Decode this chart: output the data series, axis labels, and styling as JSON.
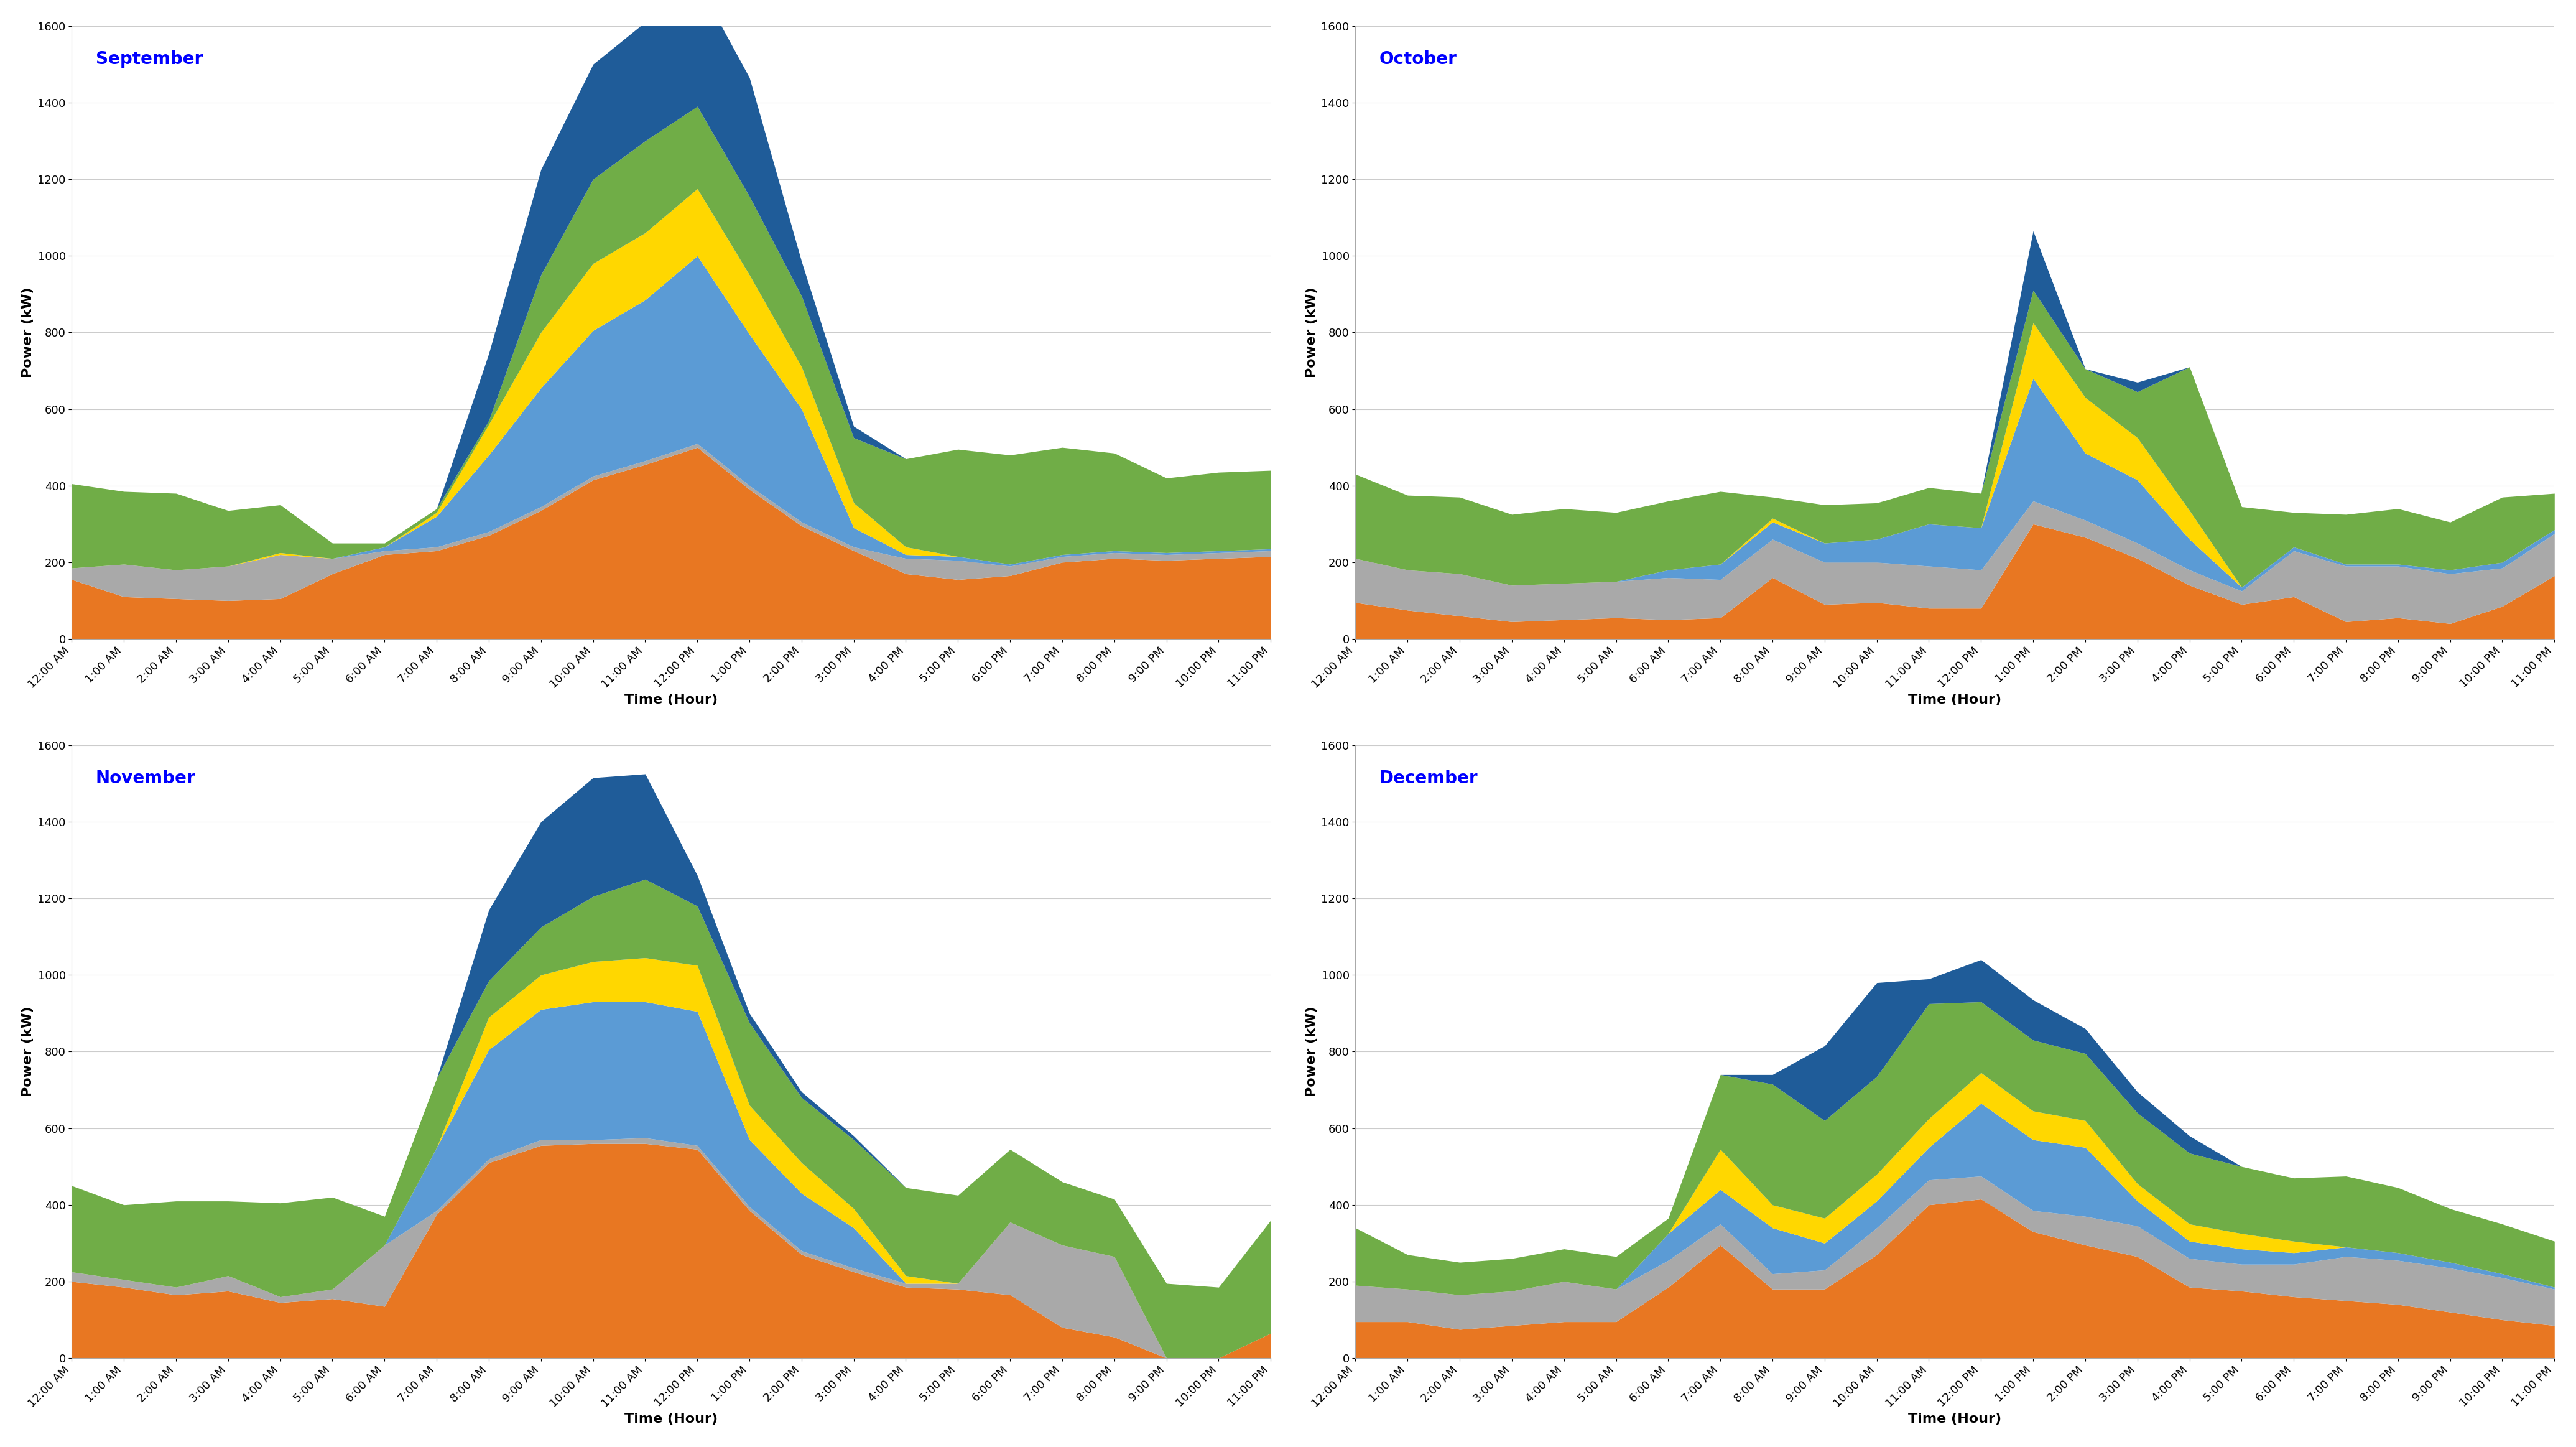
{
  "time_labels": [
    "12:00 AM",
    "1:00 AM",
    "2:00 AM",
    "3:00 AM",
    "4:00 AM",
    "5:00 AM",
    "6:00 AM",
    "7:00 AM",
    "8:00 AM",
    "9:00 AM",
    "10:00 AM",
    "11:00 AM",
    "12:00 PM",
    "1:00 PM",
    "2:00 PM",
    "3:00 PM",
    "4:00 PM",
    "5:00 PM",
    "6:00 PM",
    "7:00 PM",
    "8:00 PM",
    "9:00 PM",
    "10:00 PM",
    "11:00 PM"
  ],
  "colors": {
    "orange": "#E87722",
    "gray": "#A9A9A9",
    "light_blue": "#5B9BD5",
    "yellow": "#FFD700",
    "green": "#70AD47",
    "dark_blue": "#1F5C99",
    "title_color": "#0000FF"
  },
  "september": {
    "title": "September",
    "orange": [
      155,
      110,
      105,
      100,
      105,
      170,
      220,
      230,
      270,
      335,
      415,
      455,
      500,
      390,
      295,
      230,
      170,
      155,
      165,
      200,
      210,
      205,
      210,
      215
    ],
    "gray": [
      30,
      85,
      75,
      90,
      115,
      40,
      10,
      10,
      10,
      10,
      10,
      10,
      10,
      10,
      10,
      10,
      40,
      50,
      25,
      15,
      15,
      15,
      15,
      15
    ],
    "light_blue": [
      0,
      0,
      0,
      0,
      0,
      0,
      10,
      80,
      200,
      310,
      380,
      420,
      490,
      395,
      295,
      50,
      10,
      10,
      5,
      5,
      5,
      5,
      5,
      5
    ],
    "yellow": [
      0,
      0,
      0,
      0,
      5,
      0,
      0,
      10,
      80,
      145,
      175,
      175,
      175,
      155,
      110,
      65,
      20,
      0,
      0,
      0,
      0,
      0,
      0,
      0
    ],
    "green": [
      220,
      190,
      200,
      145,
      125,
      40,
      10,
      10,
      10,
      150,
      220,
      240,
      215,
      205,
      185,
      170,
      230,
      280,
      285,
      280,
      255,
      195,
      205,
      205
    ],
    "dark_blue": [
      0,
      0,
      0,
      0,
      0,
      0,
      0,
      0,
      175,
      275,
      300,
      310,
      325,
      310,
      90,
      30,
      0,
      0,
      0,
      0,
      0,
      0,
      0,
      0
    ]
  },
  "october": {
    "title": "October",
    "orange": [
      95,
      75,
      60,
      45,
      50,
      55,
      50,
      55,
      160,
      90,
      95,
      80,
      80,
      300,
      265,
      210,
      140,
      90,
      110,
      45,
      55,
      40,
      85,
      165
    ],
    "gray": [
      115,
      105,
      110,
      95,
      95,
      95,
      110,
      100,
      100,
      110,
      105,
      110,
      100,
      60,
      45,
      40,
      40,
      35,
      120,
      145,
      135,
      130,
      100,
      110
    ],
    "light_blue": [
      0,
      0,
      0,
      0,
      0,
      0,
      20,
      40,
      45,
      50,
      60,
      110,
      110,
      320,
      175,
      165,
      80,
      10,
      10,
      5,
      5,
      10,
      15,
      10
    ],
    "yellow": [
      0,
      0,
      0,
      0,
      0,
      0,
      0,
      0,
      10,
      0,
      0,
      0,
      0,
      145,
      145,
      110,
      75,
      0,
      0,
      0,
      0,
      0,
      0,
      0
    ],
    "green": [
      220,
      195,
      200,
      185,
      195,
      180,
      180,
      190,
      55,
      100,
      95,
      95,
      90,
      85,
      75,
      120,
      375,
      210,
      90,
      130,
      145,
      125,
      170,
      95
    ],
    "dark_blue": [
      0,
      0,
      0,
      0,
      0,
      0,
      0,
      0,
      0,
      0,
      0,
      0,
      0,
      155,
      0,
      25,
      0,
      0,
      0,
      0,
      0,
      0,
      0,
      0
    ]
  },
  "november": {
    "title": "November",
    "orange": [
      200,
      185,
      165,
      175,
      145,
      155,
      135,
      375,
      510,
      555,
      560,
      560,
      545,
      385,
      270,
      225,
      185,
      180,
      165,
      80,
      55,
      0,
      0,
      65
    ],
    "gray": [
      25,
      20,
      20,
      40,
      15,
      25,
      160,
      10,
      10,
      15,
      10,
      15,
      10,
      10,
      10,
      10,
      10,
      15,
      190,
      215,
      210,
      0,
      0,
      0
    ],
    "light_blue": [
      0,
      0,
      0,
      0,
      0,
      0,
      0,
      165,
      285,
      340,
      360,
      355,
      350,
      175,
      150,
      105,
      0,
      0,
      0,
      0,
      0,
      0,
      0,
      0
    ],
    "yellow": [
      0,
      0,
      0,
      0,
      0,
      0,
      0,
      0,
      85,
      90,
      105,
      115,
      120,
      90,
      80,
      50,
      20,
      0,
      0,
      0,
      0,
      0,
      0,
      0
    ],
    "green": [
      225,
      195,
      225,
      195,
      245,
      240,
      75,
      180,
      95,
      125,
      170,
      205,
      155,
      215,
      170,
      180,
      230,
      230,
      190,
      165,
      150,
      195,
      185,
      295
    ],
    "dark_blue": [
      0,
      0,
      0,
      0,
      0,
      0,
      0,
      0,
      185,
      275,
      310,
      275,
      80,
      25,
      15,
      10,
      0,
      0,
      0,
      0,
      0,
      0,
      0,
      0
    ]
  },
  "december": {
    "title": "December",
    "orange": [
      95,
      95,
      75,
      85,
      95,
      95,
      185,
      295,
      180,
      180,
      270,
      400,
      415,
      330,
      295,
      265,
      185,
      175,
      160,
      150,
      140,
      120,
      100,
      85
    ],
    "gray": [
      95,
      85,
      90,
      90,
      105,
      85,
      70,
      55,
      40,
      50,
      70,
      65,
      60,
      55,
      75,
      80,
      75,
      70,
      85,
      115,
      115,
      115,
      110,
      95
    ],
    "light_blue": [
      0,
      0,
      0,
      0,
      0,
      0,
      70,
      90,
      120,
      70,
      70,
      85,
      190,
      185,
      180,
      65,
      45,
      40,
      30,
      25,
      20,
      15,
      10,
      5
    ],
    "yellow": [
      0,
      0,
      0,
      0,
      0,
      0,
      0,
      105,
      60,
      65,
      70,
      75,
      80,
      75,
      70,
      45,
      45,
      40,
      30,
      0,
      0,
      0,
      0,
      0
    ],
    "green": [
      150,
      90,
      85,
      85,
      85,
      85,
      40,
      195,
      315,
      255,
      255,
      300,
      185,
      185,
      175,
      185,
      185,
      175,
      165,
      185,
      170,
      140,
      130,
      120
    ],
    "dark_blue": [
      0,
      0,
      0,
      0,
      0,
      0,
      0,
      0,
      25,
      195,
      245,
      65,
      110,
      105,
      65,
      55,
      45,
      0,
      0,
      0,
      0,
      0,
      0,
      0
    ]
  },
  "ylim": [
    0,
    1600
  ],
  "yticks": [
    0,
    200,
    400,
    600,
    800,
    1000,
    1200,
    1400,
    1600
  ],
  "ylabel": "Power (kW)",
  "xlabel": "Time (Hour)",
  "background_color": "#FFFFFF",
  "title_fontsize": 20,
  "tick_fontsize": 13,
  "label_fontsize": 16
}
